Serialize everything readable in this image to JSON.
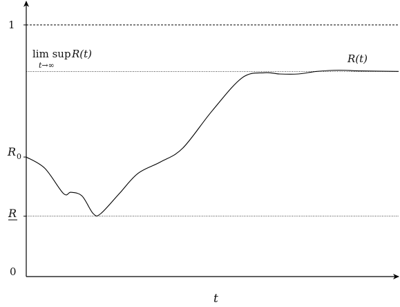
{
  "chart_data": {
    "type": "line",
    "labels": {
      "y_one": "1",
      "y_zero": "0",
      "limsup_prefix": "lim sup",
      "limsup_func": "R(t)",
      "limsup_sub": "t→∞",
      "r0_main": "R",
      "r0_sub": "0",
      "r_under": "R",
      "curve": "R(t)",
      "x_axis": "t"
    },
    "ylim": [
      0,
      1
    ],
    "levels": {
      "one": 1.0,
      "limsup": 0.815,
      "r0": 0.475,
      "r_lower": 0.24
    },
    "x": [
      0,
      0.05,
      0.1,
      0.12,
      0.15,
      0.18,
      0.2,
      0.25,
      0.3,
      0.36,
      0.42,
      0.5,
      0.58,
      0.64,
      0.68,
      0.73,
      0.78,
      0.84,
      0.9,
      1.0
    ],
    "y": [
      0.475,
      0.43,
      0.33,
      0.335,
      0.32,
      0.25,
      0.25,
      0.33,
      0.41,
      0.455,
      0.51,
      0.66,
      0.79,
      0.81,
      0.805,
      0.805,
      0.815,
      0.82,
      0.817,
      0.815
    ]
  }
}
